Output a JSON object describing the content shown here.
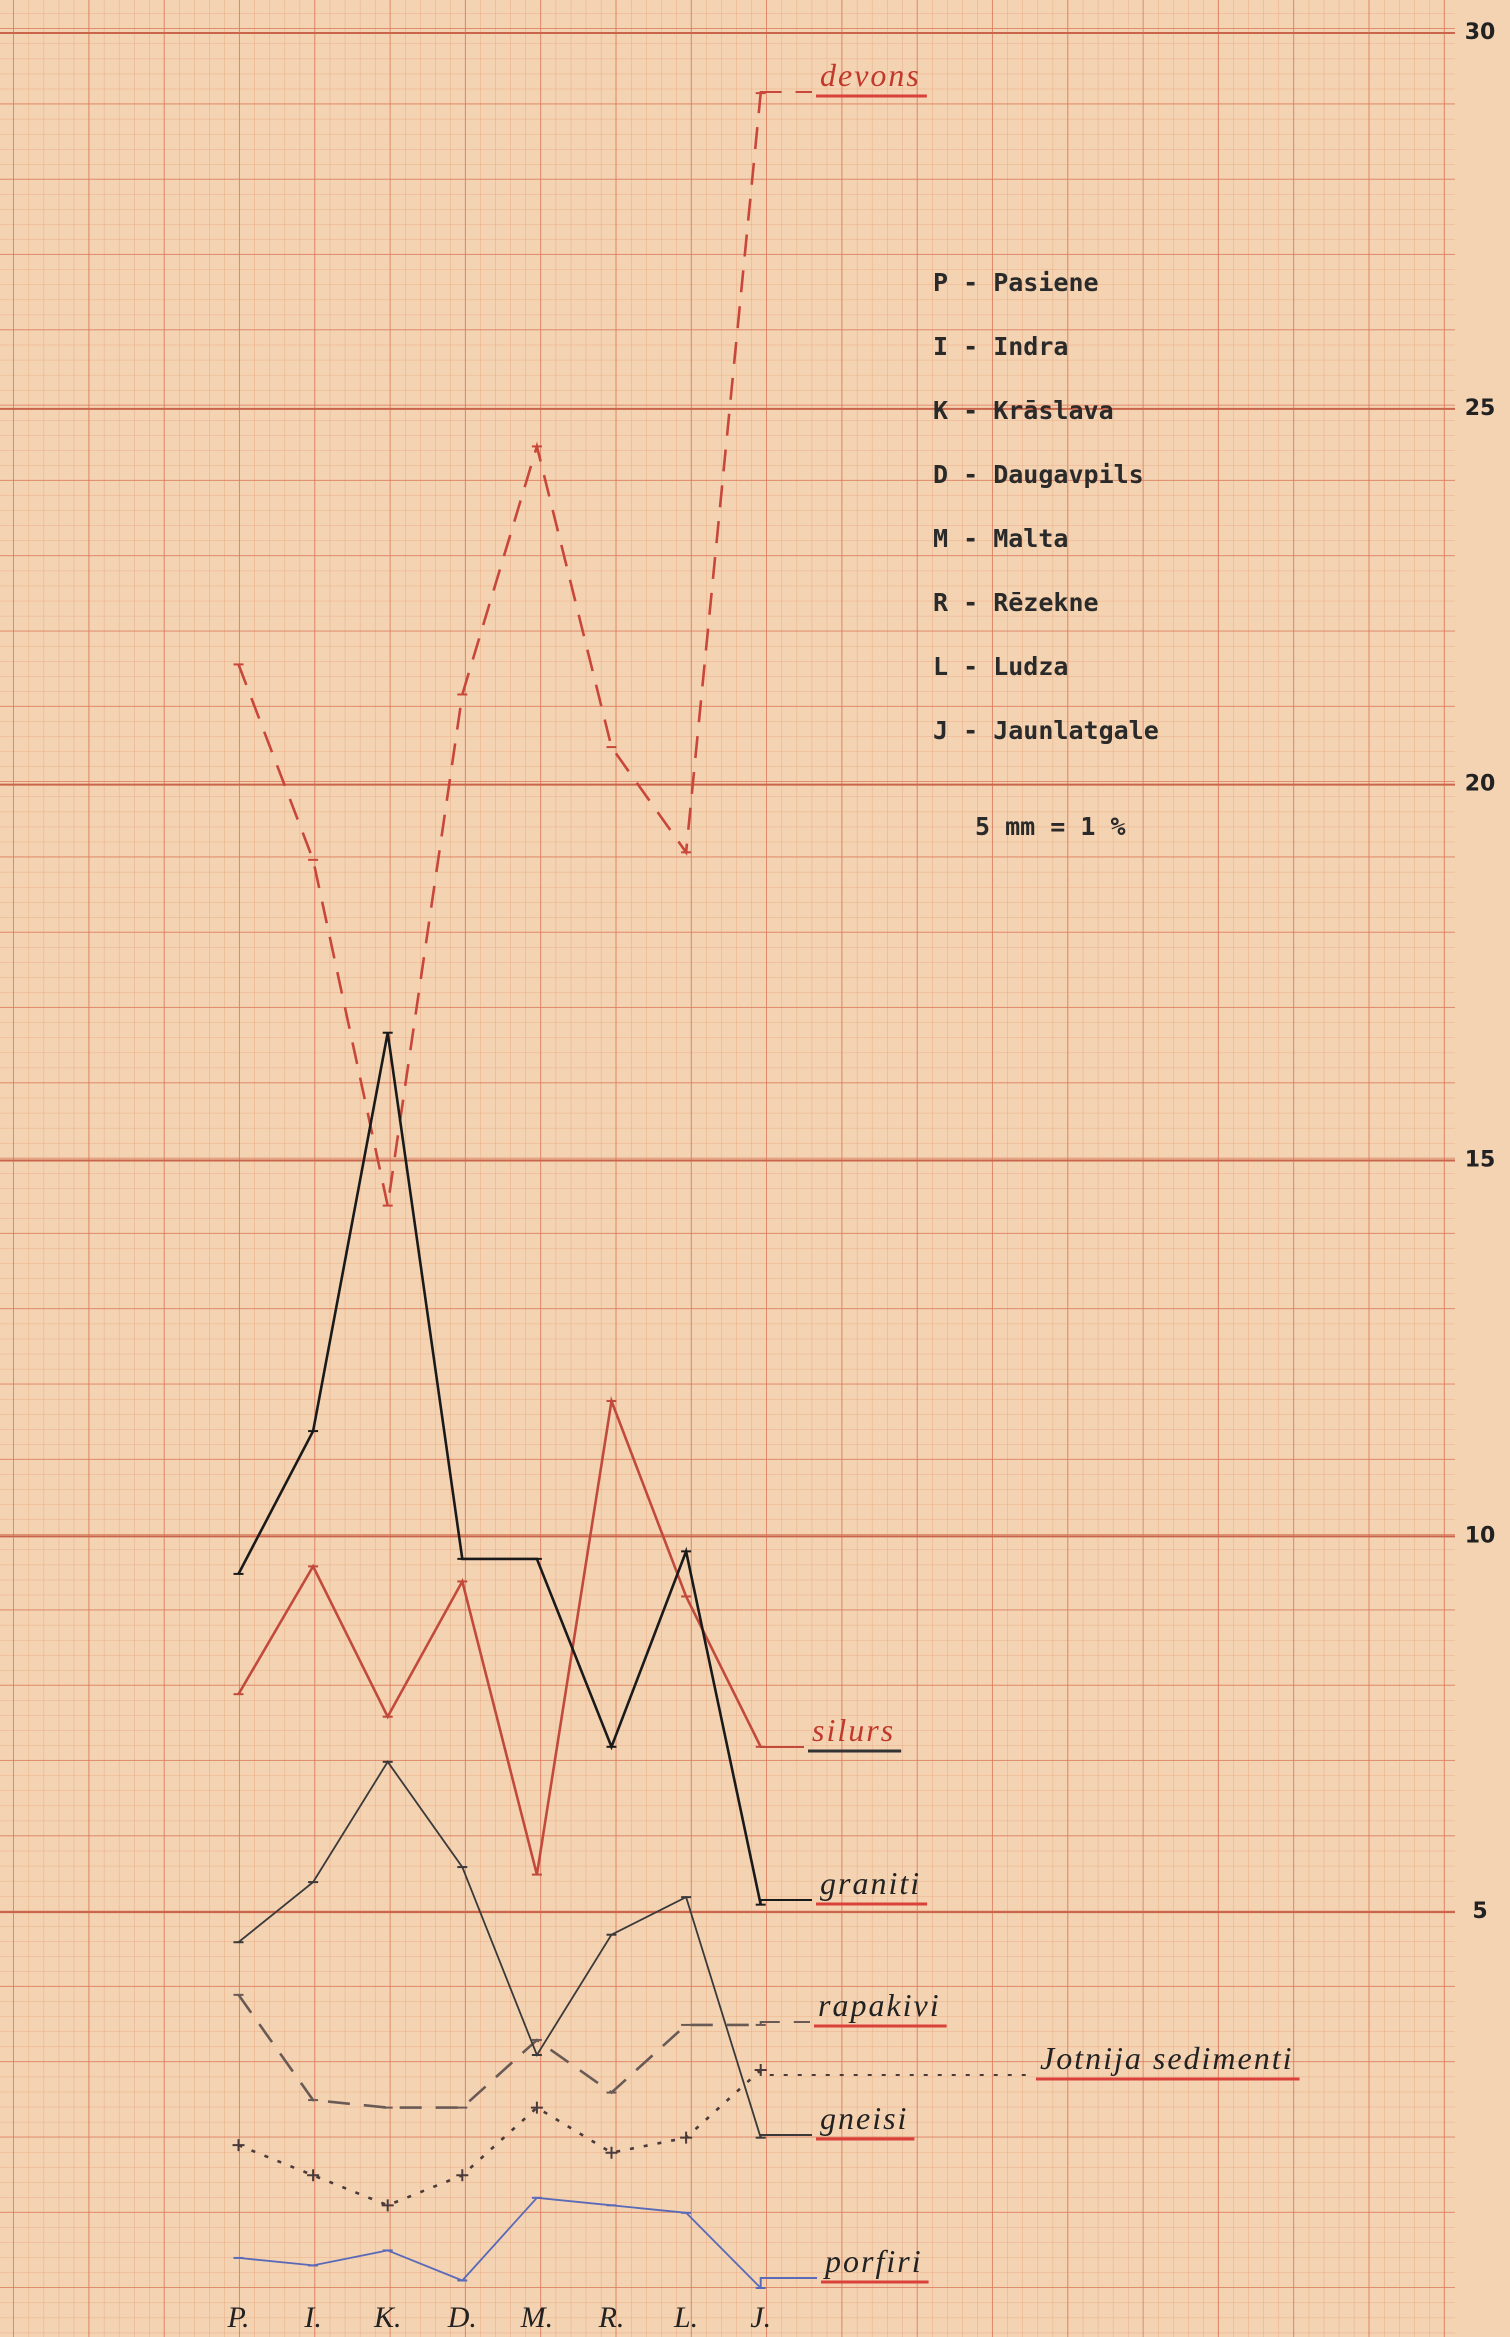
{
  "chart_data": {
    "type": "line",
    "categories": [
      "P.",
      "I.",
      "K.",
      "D.",
      "M.",
      "R.",
      "L.",
      "J."
    ],
    "ylim": [
      0,
      30
    ],
    "yticks": [
      5,
      10,
      15,
      20,
      25,
      30
    ],
    "grid": true,
    "series": [
      {
        "name": "devons",
        "color": "#c8463a",
        "style": "dashed",
        "values": [
          21.6,
          19.0,
          14.4,
          21.2,
          24.5,
          20.5,
          19.1,
          29.2
        ]
      },
      {
        "name": "silurs",
        "color": "#c24a3c",
        "style": "solid",
        "values": [
          7.9,
          9.6,
          7.6,
          9.4,
          5.5,
          11.8,
          9.2,
          7.2
        ]
      },
      {
        "name": "graniti",
        "color": "#1a1a1a",
        "style": "solid",
        "values": [
          9.5,
          11.4,
          16.7,
          9.7,
          9.7,
          7.2,
          9.8,
          5.1
        ]
      },
      {
        "name": "rapakivi",
        "color": "#6a5a55",
        "style": "dashed",
        "values": [
          3.9,
          2.5,
          2.4,
          2.4,
          3.3,
          2.6,
          3.5,
          3.5
        ]
      },
      {
        "name": "Jotnija sedimenti",
        "color": "#4a3a3a",
        "style": "cross",
        "values": [
          1.9,
          1.5,
          1.1,
          1.5,
          2.4,
          1.8,
          2.0,
          2.9
        ]
      },
      {
        "name": "gneisi",
        "color": "#3a3a3a",
        "style": "thin",
        "values": [
          4.6,
          5.4,
          7.0,
          5.6,
          3.1,
          4.7,
          5.2,
          2.0
        ]
      },
      {
        "name": "porfiri",
        "color": "#5a6ab8",
        "style": "thin",
        "values": [
          0.4,
          0.3,
          0.5,
          0.1,
          1.2,
          1.1,
          1.0,
          0.0
        ]
      }
    ],
    "key": [
      "P - Pasiene",
      "I - Indra",
      "K - Krāslava",
      "D - Daugavpils",
      "M - Malta",
      "R - Rēzekne",
      "L - Ludza",
      "J - Jaunlatgale"
    ],
    "scale_note": "5 mm = 1 %"
  }
}
